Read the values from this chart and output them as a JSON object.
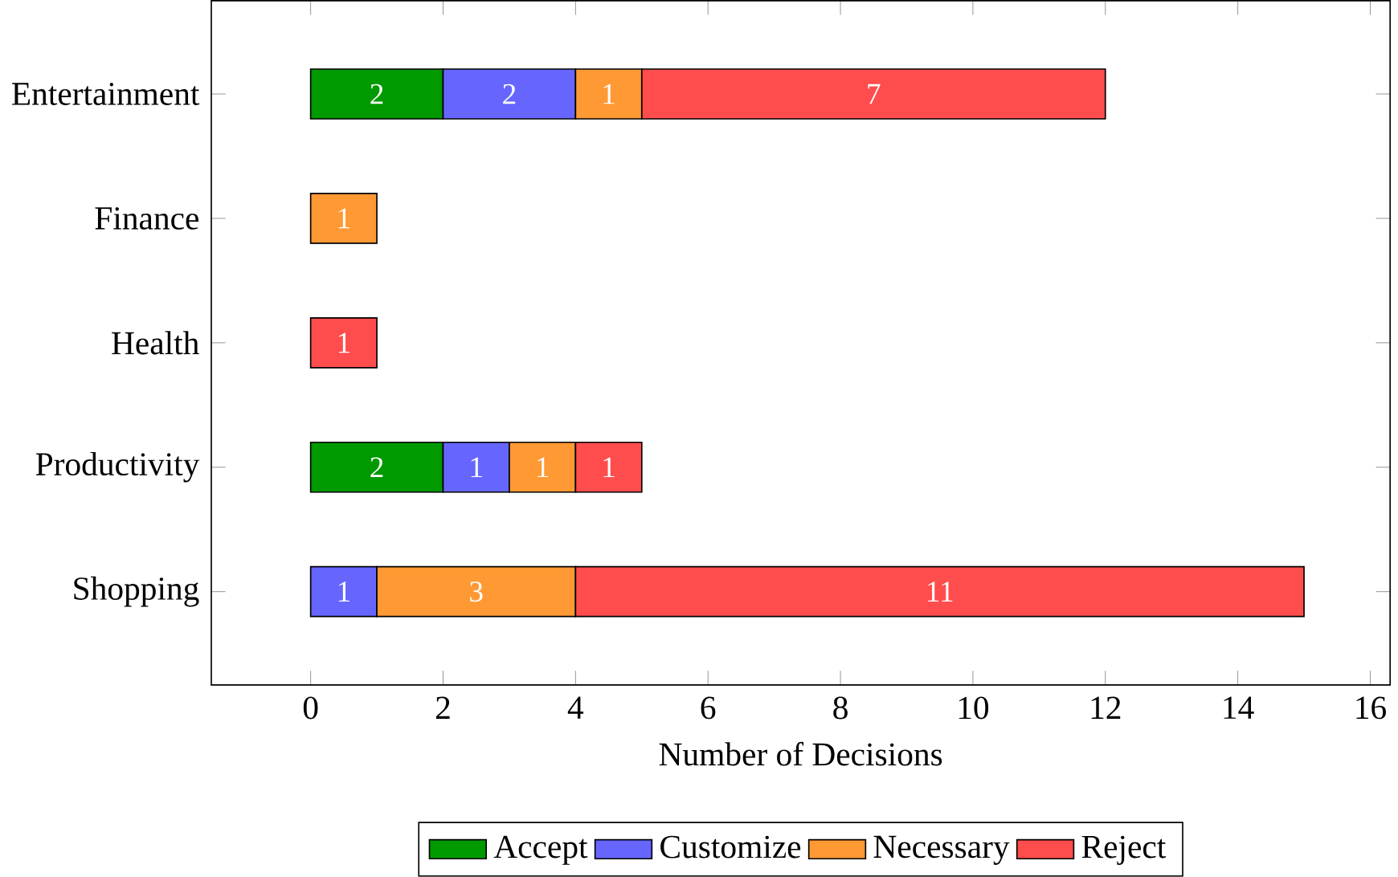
{
  "chart_data": {
    "type": "bar",
    "orientation": "horizontal",
    "stacked": true,
    "data_labels": true,
    "legend": "bottom",
    "grid": false,
    "xlabel": "Number of Decisions",
    "categories": [
      "Entertainment",
      "Finance",
      "Health",
      "Productivity",
      "Shopping"
    ],
    "xlim": [
      -1.5,
      16.3
    ],
    "xticks": [
      0,
      2,
      4,
      6,
      8,
      10,
      12,
      14,
      16
    ],
    "series": [
      {
        "name": "Accept",
        "color": "#009900",
        "values": [
          2,
          null,
          null,
          2,
          null
        ]
      },
      {
        "name": "Customize",
        "color": "#6666ff",
        "values": [
          2,
          null,
          null,
          1,
          1
        ]
      },
      {
        "name": "Necessary",
        "color": "#ff9933",
        "values": [
          1,
          1,
          null,
          1,
          3
        ]
      },
      {
        "name": "Reject",
        "color": "#ff4d4d",
        "values": [
          7,
          null,
          1,
          1,
          11
        ]
      }
    ]
  }
}
